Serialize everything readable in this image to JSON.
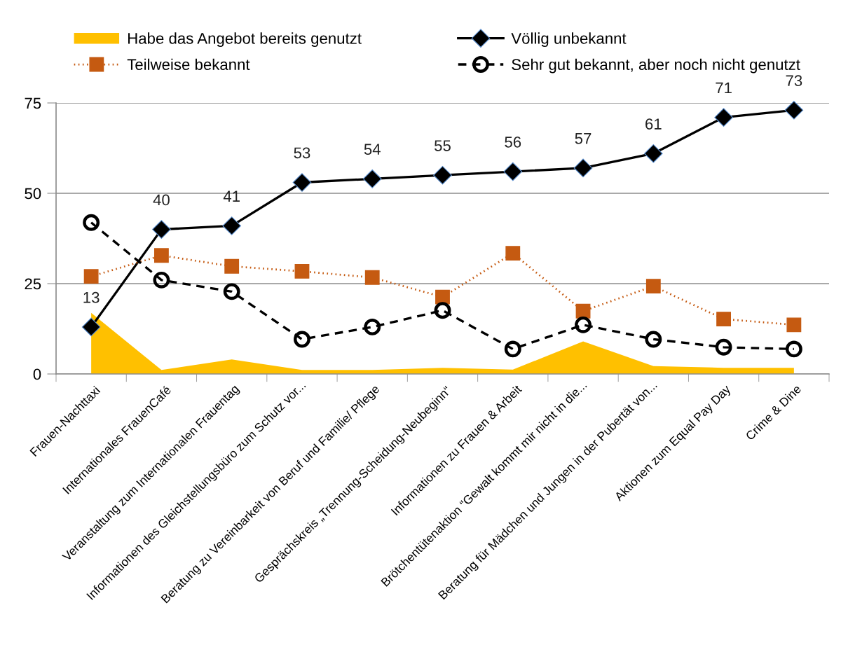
{
  "chart_data": {
    "type": "line",
    "categories": [
      "Frauen-Nachttaxi",
      "Internationales FrauenCafé",
      "Veranstaltung zum Internationalen Frauentag",
      "Informationen des Gleichstellungsbüro zum Schutz vor...",
      "Beratung zu Vereinbarkeit von Beruf und Familie/ Pflege",
      "Gesprächskreis „Trennung-Scheidung-Neubeginn“",
      "Informationen zu Frauen & Arbeit",
      "Brötchentütenaktion “Gewalt kommt mir nicht in die...",
      "Beratung für Mädchen und Jungen in der Pubertät von...",
      "Aktionen zum Equal Pay Day",
      "Crime & Dine"
    ],
    "ylim": [
      0,
      75
    ],
    "yticks": [
      0,
      25,
      50,
      75
    ],
    "grid": "y",
    "legend": "top",
    "series": [
      {
        "name": "Habe das Angebot bereits genutzt",
        "type": "area",
        "color": "#ffc000",
        "values": [
          16.9,
          1.1,
          4.0,
          1.1,
          1.1,
          1.7,
          1.2,
          9.0,
          2.2,
          1.7,
          1.7
        ]
      },
      {
        "name": "Völlig unbekannt",
        "color": "#000000",
        "marker": "diamond",
        "line_style": "solid",
        "values": [
          13,
          40,
          41,
          53,
          54,
          55,
          56,
          57,
          61,
          71,
          73
        ],
        "value_labels": [
          "13",
          "40",
          "41",
          "53",
          "54",
          "55",
          "56",
          "57",
          "61",
          "71",
          "73"
        ]
      },
      {
        "name": "Teilweise bekannt",
        "color": "#c55a11",
        "marker": "square",
        "line_style": "dotted",
        "values": [
          27.0,
          32.8,
          29.8,
          28.4,
          26.7,
          21.3,
          33.4,
          17.4,
          24.3,
          15.2,
          13.6
        ]
      },
      {
        "name": "Sehr gut bekannt, aber noch nicht genutzt",
        "color": "#000000",
        "marker": "circle",
        "line_style": "dashed",
        "values": [
          41.9,
          26.0,
          22.8,
          9.6,
          13.0,
          17.6,
          6.9,
          13.6,
          9.6,
          7.4,
          6.9
        ]
      }
    ]
  }
}
